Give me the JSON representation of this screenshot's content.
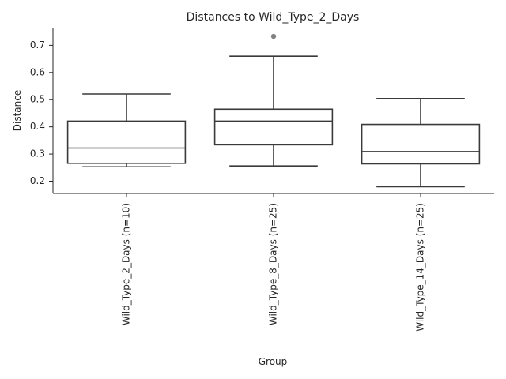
{
  "chart_data": {
    "type": "box",
    "title": "Distances to Wild_Type_2_Days",
    "xlabel": "Group",
    "ylabel": "Distance",
    "ylim": [
      0.155,
      0.765
    ],
    "yticks": [
      0.2,
      0.3,
      0.4,
      0.5,
      0.6,
      0.7
    ],
    "ytick_labels": [
      "0.2",
      "0.3",
      "0.4",
      "0.5",
      "0.6",
      "0.7"
    ],
    "grid": false,
    "categories": [
      "Wild_Type_2_Days (n=10)",
      "Wild_Type_8_Days (n=25)",
      "Wild_Type_14_Days (n=25)"
    ],
    "boxes": [
      {
        "whisker_low": 0.253,
        "q1": 0.266,
        "median": 0.322,
        "q3": 0.421,
        "whisker_high": 0.521,
        "outliers": []
      },
      {
        "whisker_low": 0.256,
        "q1": 0.334,
        "median": 0.421,
        "q3": 0.465,
        "whisker_high": 0.66,
        "outliers": [
          0.733
        ]
      },
      {
        "whisker_low": 0.18,
        "q1": 0.264,
        "median": 0.309,
        "q3": 0.409,
        "whisker_high": 0.504,
        "outliers": []
      }
    ],
    "colors": {
      "box_line": "#3a3a3a",
      "axis": "#262626",
      "outlier": "#808080",
      "background": "#ffffff"
    }
  }
}
